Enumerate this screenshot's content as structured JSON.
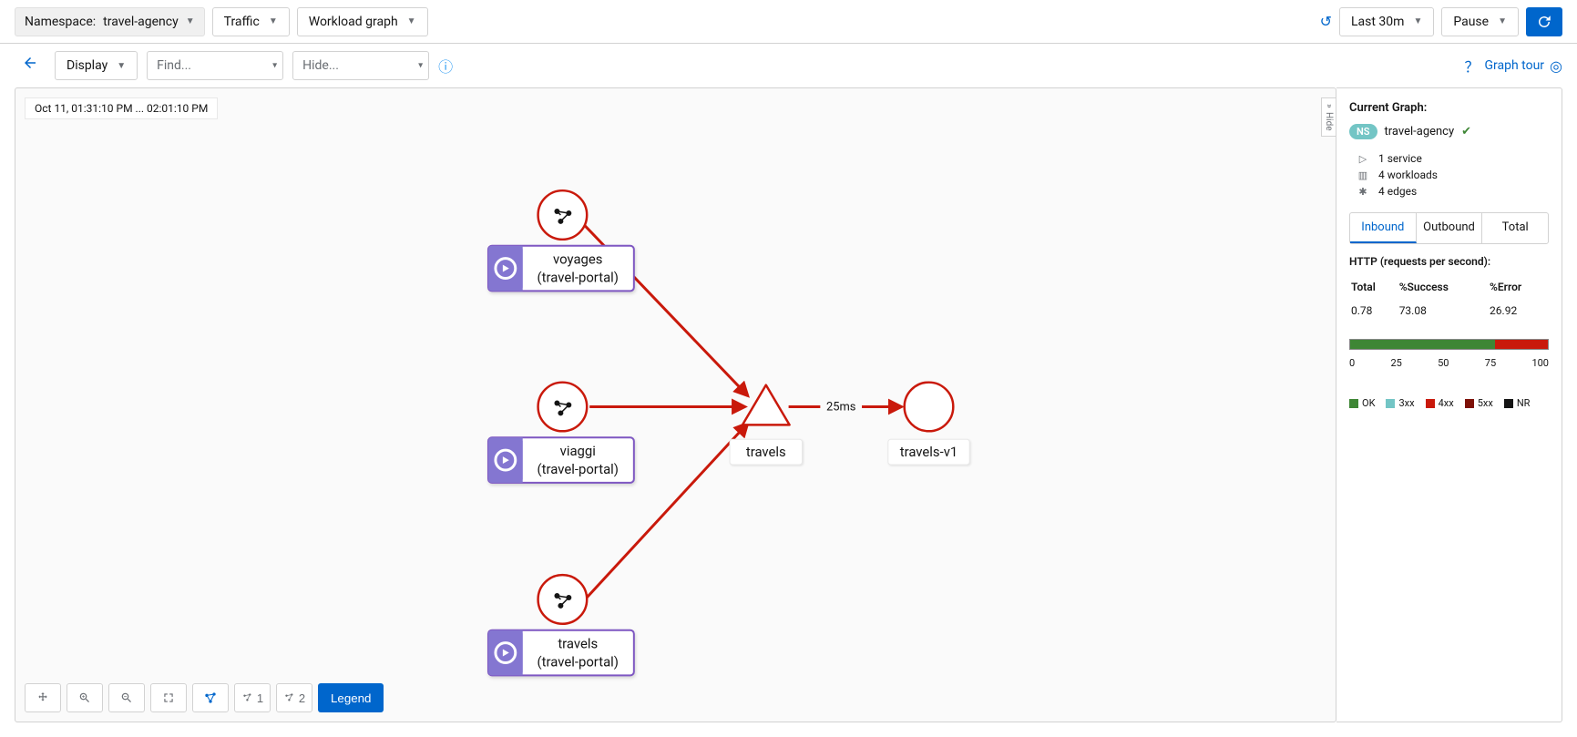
{
  "toolbar": {
    "namespace_label": "Namespace:",
    "namespace_value": "travel-agency",
    "traffic_label": "Traffic",
    "graph_type_label": "Workload graph",
    "time_range": "Last 30m",
    "pause_label": "Pause"
  },
  "second_toolbar": {
    "display_label": "Display",
    "find_placeholder": "Find...",
    "hide_placeholder": "Hide...",
    "graph_tour_label": "Graph tour"
  },
  "canvas": {
    "timestamp": "Oct 11, 01:31:10 PM ... 02:01:10 PM",
    "hide_label": "Hide",
    "legend_button": "Legend",
    "layout_label_1": "1",
    "layout_label_2": "2"
  },
  "graph": {
    "edge_color": "#c9190b",
    "node_stroke": "#c9190b",
    "app_box_stroke": "#8476d1",
    "app_icon_bg": "#8476d1",
    "nodes": {
      "voyages_wl": {
        "label_line1": "voyages",
        "label_line2": "(travel-portal)"
      },
      "viaggi_wl": {
        "label_line1": "viaggi",
        "label_line2": "(travel-portal)"
      },
      "travels_wl": {
        "label_line1": "travels",
        "label_line2": "(travel-portal)"
      },
      "travels_svc": {
        "label": "travels"
      },
      "travels_v1": {
        "label": "travels-v1"
      }
    },
    "edge_label": "25ms"
  },
  "side_panel": {
    "title": "Current Graph:",
    "ns_badge": "NS",
    "ns_name": "travel-agency",
    "summary": {
      "services": "1 service",
      "workloads": "4 workloads",
      "edges": "4 edges"
    },
    "tabs": {
      "inbound": "Inbound",
      "outbound": "Outbound",
      "total": "Total"
    },
    "http_title": "HTTP (requests per second):",
    "http_headers": {
      "total": "Total",
      "success": "%Success",
      "error": "%Error"
    },
    "http_row": {
      "total": "0.78",
      "success": "73.08",
      "error": "26.92"
    },
    "bar": {
      "ok_pct": 73.08,
      "err_pct": 26.92,
      "ok_color": "#3e8635",
      "err_color": "#c9190b",
      "ticks": [
        "0",
        "25",
        "50",
        "75",
        "100"
      ]
    },
    "legend": {
      "ok": {
        "label": "OK",
        "color": "#3e8635"
      },
      "3xx": {
        "label": "3xx",
        "color": "#73c5c5"
      },
      "4xx": {
        "label": "4xx",
        "color": "#c9190b"
      },
      "5xx": {
        "label": "5xx",
        "color": "#7d1007"
      },
      "nr": {
        "label": "NR",
        "color": "#151515"
      }
    }
  }
}
